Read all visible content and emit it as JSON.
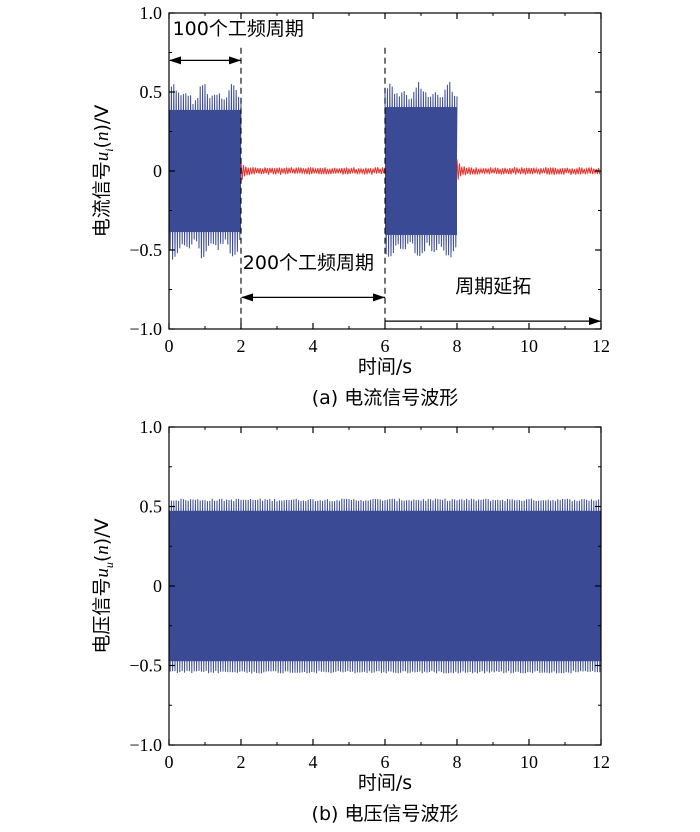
{
  "chart_data": [
    {
      "type": "line",
      "panel": "a",
      "caption": "(a) 电流信号波形",
      "xlabel": "时间/s",
      "ylabel": {
        "prefix": "电流信号",
        "var": "u",
        "sub": "i",
        "suffix": "(n)/V",
        "paren_n": "n"
      },
      "xlim": [
        0,
        12
      ],
      "ylim": [
        -1.0,
        1.0
      ],
      "xticks": [
        "0",
        "2",
        "4",
        "6",
        "8",
        "10",
        "12"
      ],
      "yticks": [
        "1.0",
        "0.5",
        "0",
        "−0.5",
        "−1.0"
      ],
      "grid": false,
      "colors": {
        "loaded": "#3a4a94",
        "idle": "#e8312c",
        "axis": "#000000"
      },
      "series": [
        {
          "segment": "loaded",
          "x_range": [
            0,
            2
          ],
          "amplitude_range": [
            0.42,
            0.55
          ]
        },
        {
          "segment": "idle",
          "x_range": [
            2,
            6
          ],
          "amplitude": 0.02,
          "onset_peak": 0.05
        },
        {
          "segment": "loaded",
          "x_range": [
            6,
            8
          ],
          "amplitude_range": [
            0.44,
            0.55
          ]
        },
        {
          "segment": "idle",
          "x_range": [
            8,
            12
          ],
          "amplitude": 0.02,
          "onset_peak": 0.05
        }
      ],
      "dashed_vlines_x": [
        2,
        6
      ],
      "annotations": [
        {
          "text": "100个工频周期",
          "arrow_x": [
            0,
            2
          ],
          "arrow_y": 0.7,
          "text_x": 0.1,
          "text_y": 0.86,
          "arrow_style": "double"
        },
        {
          "text": "200个工频周期",
          "arrow_x": [
            2,
            6
          ],
          "arrow_y": -0.8,
          "text_x": 2.05,
          "text_y": -0.62,
          "arrow_style": "double"
        },
        {
          "text": "周期延拓",
          "arrow_x": [
            6,
            12
          ],
          "arrow_y": -0.95,
          "text_x": 7.95,
          "text_y": -0.77,
          "arrow_style": "single"
        }
      ]
    },
    {
      "type": "line",
      "panel": "b",
      "caption": "(b) 电压信号波形",
      "xlabel": "时间/s",
      "ylabel": {
        "prefix": "电压信号",
        "var": "u",
        "sub": "u",
        "suffix": "(n)/V",
        "paren_n": "n"
      },
      "xlim": [
        0,
        12
      ],
      "ylim": [
        -1.0,
        1.0
      ],
      "xticks": [
        "0",
        "2",
        "4",
        "6",
        "8",
        "10",
        "12"
      ],
      "yticks": [
        "1.0",
        "0.5",
        "0",
        "−0.5",
        "−1.0"
      ],
      "grid": false,
      "colors": {
        "signal": "#3a4a94",
        "axis": "#000000"
      },
      "series": [
        {
          "segment": "signal",
          "x_range": [
            0,
            12
          ],
          "amplitude": 0.55
        }
      ]
    }
  ]
}
